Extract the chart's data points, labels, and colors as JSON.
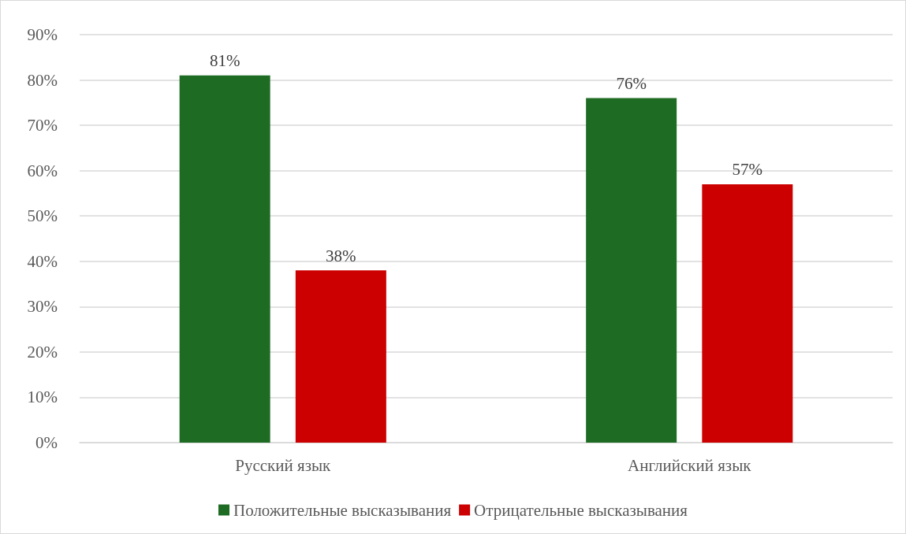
{
  "chart_data": {
    "type": "bar",
    "categories": [
      "Русский язык",
      "Английский язык"
    ],
    "series": [
      {
        "name": "Положительные высказывания",
        "color": "#1e6b24",
        "values": [
          81,
          76
        ],
        "value_labels": [
          "81%",
          "76%"
        ]
      },
      {
        "name": "Отрицательные высказывания",
        "color": "#cc0000",
        "values": [
          38,
          57
        ],
        "value_labels": [
          "38%",
          "57%"
        ]
      }
    ],
    "ylim": [
      0,
      90
    ],
    "yticks": [
      {
        "value": 0,
        "label": "0%"
      },
      {
        "value": 10,
        "label": "10%"
      },
      {
        "value": 20,
        "label": "20%"
      },
      {
        "value": 30,
        "label": "30%"
      },
      {
        "value": 40,
        "label": "40%"
      },
      {
        "value": 50,
        "label": "50%"
      },
      {
        "value": 60,
        "label": "60%"
      },
      {
        "value": 70,
        "label": "70%"
      },
      {
        "value": 80,
        "label": "80%"
      },
      {
        "value": 90,
        "label": "90%"
      }
    ],
    "grid": "y",
    "legend": "bottom"
  }
}
